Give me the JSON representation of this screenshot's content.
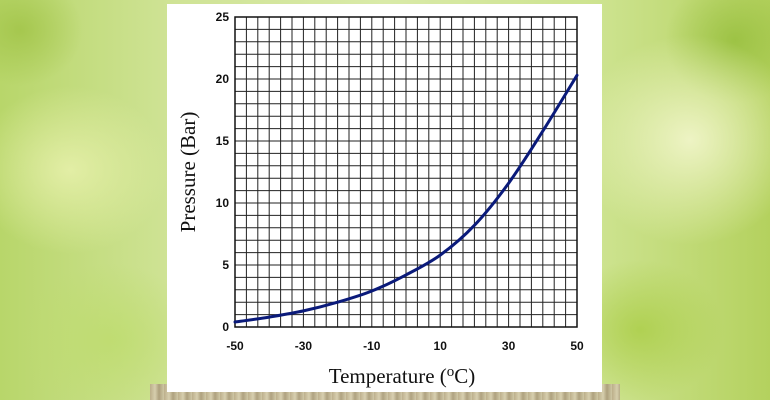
{
  "chart_data": {
    "type": "line",
    "title": "",
    "xlabel": "Temperature (",
    "xlabel_unit_super": "o",
    "xlabel_unit": "C",
    "xlabel_close": ")",
    "ylabel": "Pressure (Bar)",
    "xlim": [
      -50,
      50
    ],
    "ylim": [
      0,
      25
    ],
    "x_ticks": [
      "-50",
      "-30",
      "-10",
      "10",
      "30",
      "50"
    ],
    "y_ticks": [
      "0",
      "5",
      "10",
      "15",
      "20",
      "25"
    ],
    "grid": true,
    "line_color": "#0a1a7a",
    "series": [
      {
        "x": [
          -50,
          -40,
          -30,
          -20,
          -10,
          0,
          10,
          20,
          30,
          40,
          50
        ],
        "y": [
          0.4,
          0.8,
          1.3,
          2.0,
          2.9,
          4.2,
          5.8,
          8.2,
          11.6,
          15.8,
          20.3
        ]
      }
    ]
  }
}
